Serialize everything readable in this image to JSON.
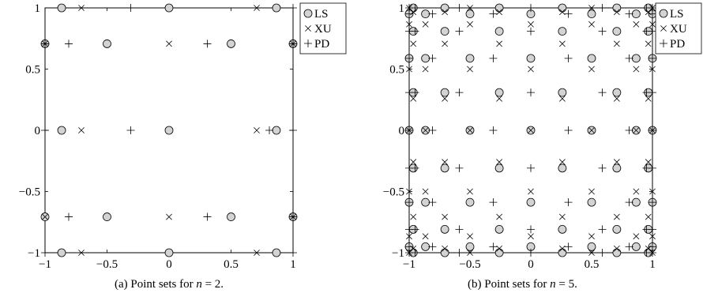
{
  "chart_data": [
    {
      "type": "scatter",
      "panel": "a",
      "caption": {
        "prefix": "(a) Point sets for ",
        "var": "n",
        "suffix": " = 2."
      },
      "xlim": [
        -1,
        1
      ],
      "ylim": [
        -1,
        1
      ],
      "xticks": [
        -1,
        -0.5,
        0,
        0.5,
        1
      ],
      "yticks": [
        -1,
        -0.5,
        0,
        0.5,
        1
      ],
      "xtick_labels": [
        "−1",
        "−0.5",
        "0",
        "0.5",
        "1"
      ],
      "ytick_labels": [
        "−1",
        "−0.5",
        "0",
        "0.5",
        "1"
      ],
      "grid": false,
      "legend_position": "outside-top-right",
      "series": [
        {
          "name": "LS",
          "marker": "circle",
          "fill": "#d3d3d3",
          "points": [
            [
              -0.866,
              -1
            ],
            [
              0,
              -1
            ],
            [
              0.866,
              -1
            ],
            [
              -1,
              -0.707
            ],
            [
              -0.5,
              -0.707
            ],
            [
              0.5,
              -0.707
            ],
            [
              1,
              -0.707
            ],
            [
              -0.866,
              0
            ],
            [
              0,
              0
            ],
            [
              0.866,
              0
            ],
            [
              -1,
              0.707
            ],
            [
              -0.5,
              0.707
            ],
            [
              0.5,
              0.707
            ],
            [
              1,
              0.707
            ],
            [
              -0.866,
              1
            ],
            [
              0,
              1
            ],
            [
              0.866,
              1
            ]
          ]
        },
        {
          "name": "XU",
          "marker": "x",
          "points": [
            [
              -0.707,
              -1
            ],
            [
              0.707,
              -1
            ],
            [
              -1,
              -0.707
            ],
            [
              0,
              -0.707
            ],
            [
              1,
              -0.707
            ],
            [
              -0.707,
              0
            ],
            [
              0.707,
              0
            ],
            [
              -1,
              0.707
            ],
            [
              0,
              0.707
            ],
            [
              1,
              0.707
            ],
            [
              -0.707,
              1
            ],
            [
              0.707,
              1
            ]
          ]
        },
        {
          "name": "PD",
          "marker": "plus",
          "points": [
            [
              -1,
              -1
            ],
            [
              1,
              -1
            ],
            [
              -0.809,
              -0.707
            ],
            [
              0.309,
              -0.707
            ],
            [
              1,
              -0.707
            ],
            [
              -1,
              0
            ],
            [
              -0.309,
              0
            ],
            [
              0.809,
              0
            ],
            [
              1,
              0
            ],
            [
              -1,
              0.707
            ],
            [
              -0.809,
              0.707
            ],
            [
              0.309,
              0.707
            ],
            [
              1,
              0.707
            ],
            [
              -0.309,
              1
            ],
            [
              1,
              1
            ]
          ]
        }
      ]
    },
    {
      "type": "scatter",
      "panel": "b",
      "caption": {
        "prefix": "(b) Point sets for ",
        "var": "n",
        "suffix": " = 5."
      },
      "xlim": [
        -1,
        1
      ],
      "ylim": [
        -1,
        1
      ],
      "xticks": [
        -1,
        -0.5,
        0,
        0.5,
        1
      ],
      "yticks": [
        -1,
        -0.5,
        0,
        0.5,
        1
      ],
      "xtick_labels": [
        "−1",
        "−0.5",
        "0",
        "0.5",
        "1"
      ],
      "ytick_labels": [
        "−1",
        "−0.5",
        "0",
        "0.5",
        "1"
      ],
      "grid": false,
      "legend_position": "outside-top-right",
      "series": [
        {
          "name": "LS",
          "marker": "circle",
          "fill": "#d3d3d3",
          "grid_points": {
            "odd_rows_x": [
              -0.966,
              -0.707,
              -0.259,
              0.259,
              0.707,
              0.966
            ],
            "odd_rows_y": [
              -1,
              -0.809,
              -0.309,
              0.309,
              0.809,
              1
            ],
            "even_rows_x": [
              -1,
              -0.866,
              -0.5,
              0,
              0.5,
              0.866,
              1
            ],
            "even_rows_y": [
              -0.951,
              -0.588,
              0,
              0.588,
              0.951
            ]
          }
        },
        {
          "name": "XU",
          "marker": "x",
          "grid_points": {
            "set1_x": [
              -1,
              -0.5,
              0.5,
              1
            ],
            "set1_y": [
              -1,
              -0.866,
              -0.5,
              0,
              0.5,
              0.866,
              1
            ],
            "set2_x": [
              -0.866,
              0,
              0.866
            ],
            "set2_y": [
              -0.866,
              -0.5,
              0,
              0.5,
              0.866
            ],
            "set3_x": [
              -0.966,
              -0.707,
              -0.259,
              0.259,
              0.707,
              0.966
            ],
            "set3_y": [
              -0.966,
              -0.707,
              -0.259,
              0.259,
              0.707,
              0.966
            ]
          }
        },
        {
          "name": "PD",
          "marker": "plus",
          "grid_points": {
            "odd_rows_x": [
              -1,
              -0.809,
              -0.309,
              0.309,
              0.809,
              1
            ],
            "odd_rows_y": [
              -0.951,
              -0.588,
              0,
              0.588,
              0.951
            ],
            "even_rows_x": [
              -1,
              -0.951,
              -0.588,
              0,
              0.588,
              0.951,
              1
            ],
            "even_rows_y": [
              -1,
              -0.809,
              -0.309,
              0.309,
              0.809,
              1
            ]
          }
        }
      ]
    }
  ],
  "captions": {
    "a_prefix": "(a) Point sets for ",
    "a_var": "n",
    "a_suffix": " = 2.",
    "b_prefix": "(b) Point sets for ",
    "b_var": "n",
    "b_suffix": " = 5."
  }
}
